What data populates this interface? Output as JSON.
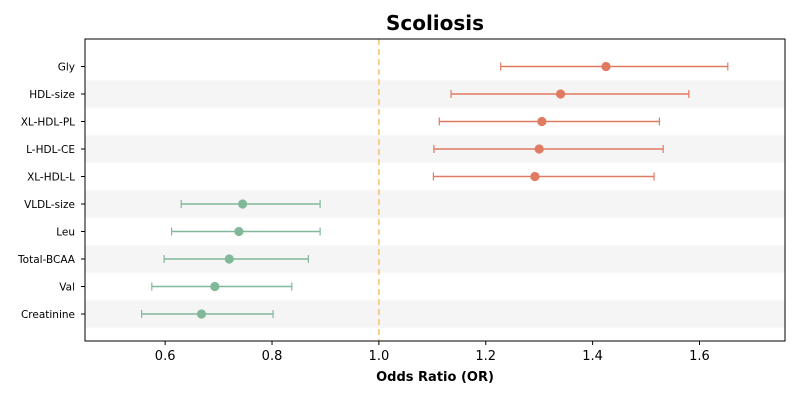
{
  "chart_data": {
    "type": "forest",
    "title": "Scoliosis",
    "xlabel": "Odds Ratio (OR)",
    "xlim": [
      0.45,
      1.76
    ],
    "xticks": [
      0.6,
      0.8,
      1.0,
      1.2,
      1.4,
      1.6
    ],
    "xtick_labels": [
      "0.6",
      "0.8",
      "1.0",
      "1.2",
      "1.4",
      "1.6"
    ],
    "reference_line": 1.0,
    "colors": {
      "positive": "#e07b61",
      "negative": "#82b89a",
      "reference": "#f5c67a",
      "band": "#f5f5f5"
    },
    "rows": [
      {
        "label": "Gly",
        "or": 1.425,
        "lower": 1.228,
        "upper": 1.653
      },
      {
        "label": "HDL-size",
        "or": 1.34,
        "lower": 1.135,
        "upper": 1.58
      },
      {
        "label": "XL-HDL-PL",
        "or": 1.305,
        "lower": 1.113,
        "upper": 1.525
      },
      {
        "label": "L-HDL-CE",
        "or": 1.3,
        "lower": 1.103,
        "upper": 1.532
      },
      {
        "label": "XL-HDL-L",
        "or": 1.292,
        "lower": 1.102,
        "upper": 1.515
      },
      {
        "label": "VLDL-size",
        "or": 0.745,
        "lower": 0.63,
        "upper": 0.89
      },
      {
        "label": "Leu",
        "or": 0.738,
        "lower": 0.612,
        "upper": 0.89
      },
      {
        "label": "Total-BCAA",
        "or": 0.72,
        "lower": 0.598,
        "upper": 0.868
      },
      {
        "label": "Val",
        "or": 0.693,
        "lower": 0.575,
        "upper": 0.837
      },
      {
        "label": "Creatinine",
        "or": 0.668,
        "lower": 0.556,
        "upper": 0.802
      }
    ]
  }
}
